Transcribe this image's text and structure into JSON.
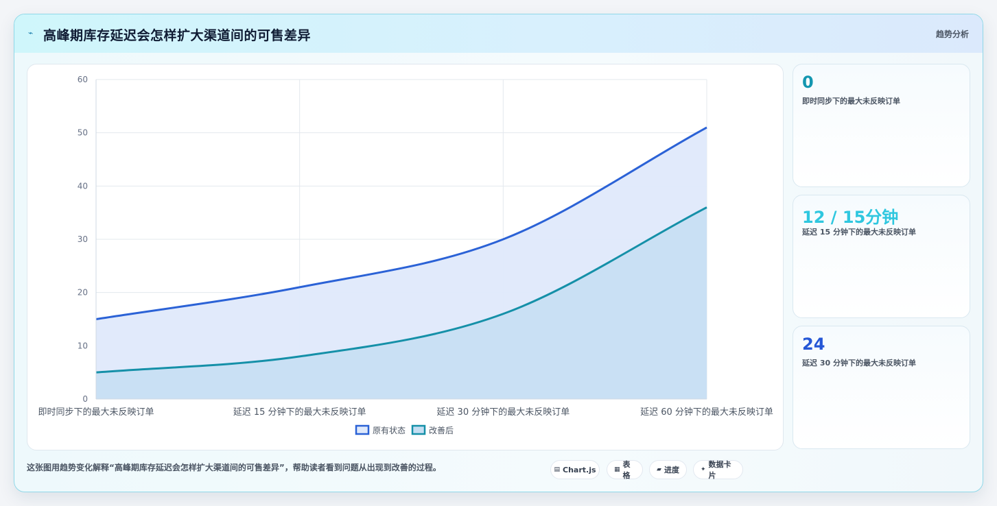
{
  "header": {
    "icon": "trend-icon",
    "title": "高峰期库存延迟会怎样扩大渠道间的可售差异",
    "tag": "趋势分析"
  },
  "colors": {
    "series1_line": "#2b62d6",
    "series1_fill": "#dfe9fb",
    "series2_line": "#1590a8",
    "series2_fill": "#c4def2",
    "stat1": "#1497b0",
    "stat2": "#2fc7df",
    "stat3": "#2557d6"
  },
  "chart_data": {
    "type": "area",
    "categories": [
      "即时同步下的最大未反映订单",
      "延迟 15 分钟下的最大未反映订单",
      "延迟 30 分钟下的最大未反映订单",
      "延迟 60 分钟下的最大未反映订单"
    ],
    "series": [
      {
        "name": "原有状态",
        "values": [
          15,
          21,
          30,
          51
        ]
      },
      {
        "name": "改善后",
        "values": [
          5,
          8,
          16,
          36
        ]
      }
    ],
    "ylim": [
      0,
      60
    ],
    "yticks": [
      0,
      10,
      20,
      30,
      40,
      50,
      60
    ],
    "grid": true,
    "legend": "bottom"
  },
  "stats": [
    {
      "value": "0",
      "label": "即时同步下的最大未反映订单"
    },
    {
      "value": "12 / 15分钟",
      "label": "延迟 15 分钟下的最大未反映订单"
    },
    {
      "value": "24",
      "label": "延迟 30 分钟下的最大未反映订单"
    }
  ],
  "footer": {
    "description": "这张图用趋势变化解释“高峰期库存延迟会怎样扩大渠道间的可售差异”，帮助读者看到问题从出现到改善的过程。",
    "pills": [
      {
        "icon": "chart-icon",
        "label": "Chart.js"
      },
      {
        "icon": "table-icon",
        "label": "表格"
      },
      {
        "icon": "progress-icon",
        "label": "进度"
      },
      {
        "icon": "card-icon",
        "label": "数据卡片"
      }
    ]
  }
}
